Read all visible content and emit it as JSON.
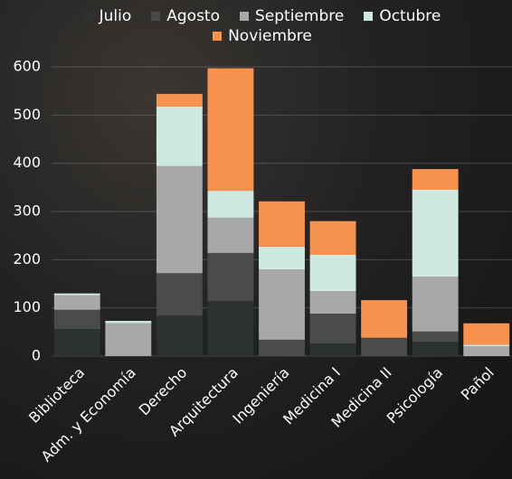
{
  "chart_data": {
    "type": "stacked_bar",
    "categories": [
      "Biblioteca",
      "Adm. y Economía",
      "Derecho",
      "Arquitectura",
      "Ingeniería",
      "Medicina I",
      "Medicina II",
      "Psicología",
      "Pañol"
    ],
    "series": [
      {
        "name": "Julio",
        "color": "#2c3132",
        "values": [
          56,
          0,
          84,
          114,
          0,
          26,
          0,
          30,
          0
        ]
      },
      {
        "name": "Agosto",
        "color": "#4b4b4b",
        "values": [
          40,
          0,
          88,
          100,
          34,
          62,
          38,
          21,
          0
        ]
      },
      {
        "name": "Septiembre",
        "color": "#a8a8a8",
        "values": [
          30,
          68,
          222,
          73,
          146,
          47,
          0,
          114,
          20
        ]
      },
      {
        "name": "Octubre",
        "color": "#cfe9e1",
        "values": [
          4,
          5,
          124,
          56,
          47,
          75,
          0,
          180,
          4
        ]
      },
      {
        "name": "Noviembre",
        "color": "#f7924f",
        "values": [
          0,
          0,
          26,
          254,
          94,
          70,
          78,
          43,
          44
        ]
      }
    ],
    "ylim": [
      0,
      600
    ],
    "yticks": [
      0,
      100,
      200,
      300,
      400,
      500,
      600
    ],
    "grid": true
  }
}
